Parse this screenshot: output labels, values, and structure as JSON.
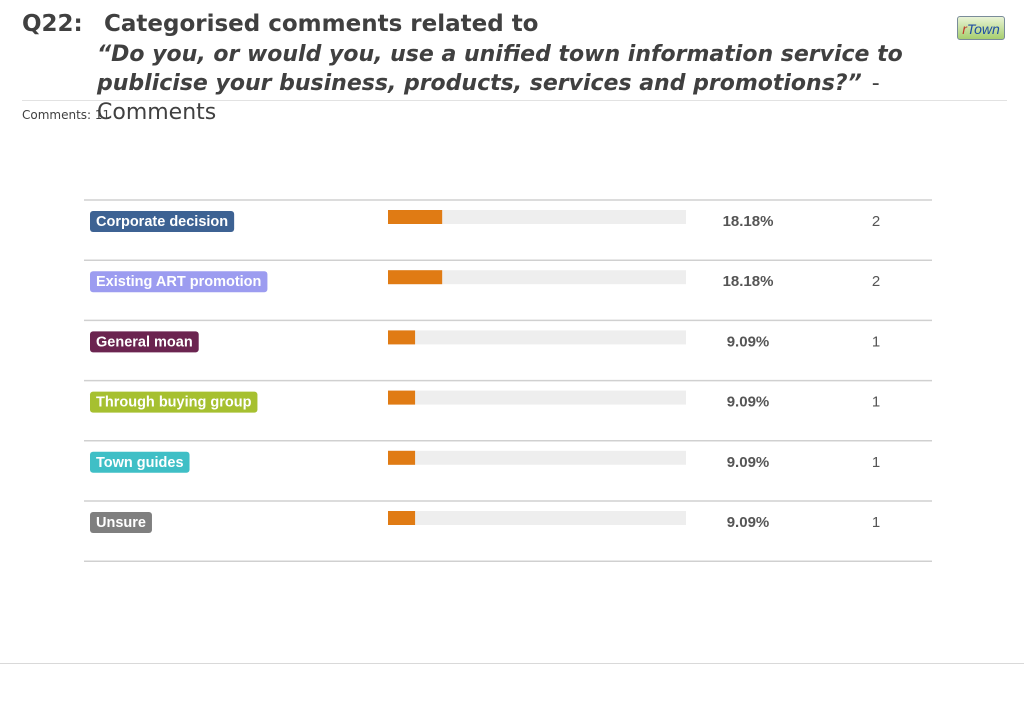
{
  "header": {
    "question_number": "Q22:",
    "title": "Categorised comments related to",
    "question_text": "“Do you, or would you, use a unified town information service to publicise your business, products, services and promotions?”",
    "suffix": "- Comments",
    "logo": {
      "prefix": "r",
      "text": "Town"
    }
  },
  "comments_label": "Comments: 11",
  "colors": {
    "bar_fill": "#e07b14",
    "bar_track": "#eeeeee",
    "row_divider": "#d0d0d0"
  },
  "chart_data": {
    "type": "bar",
    "orientation": "horizontal",
    "categories": [
      "Corporate decision",
      "Existing ART promotion",
      "General moan",
      "Through buying group",
      "Town guides",
      "Unsure"
    ],
    "category_colors": [
      "#3d6293",
      "#9c9cf0",
      "#6b2450",
      "#a6c030",
      "#3fbfc6",
      "#7f7f7f"
    ],
    "values": [
      18.18,
      18.18,
      9.09,
      9.09,
      9.09,
      9.09
    ],
    "value_labels": [
      "18.18%",
      "18.18%",
      "9.09%",
      "9.09%",
      "9.09%",
      "9.09%"
    ],
    "counts": [
      "2",
      "2",
      "1",
      "1",
      "1",
      "1"
    ],
    "xlim": [
      0,
      100
    ],
    "title": "",
    "xlabel": "",
    "ylabel": ""
  }
}
